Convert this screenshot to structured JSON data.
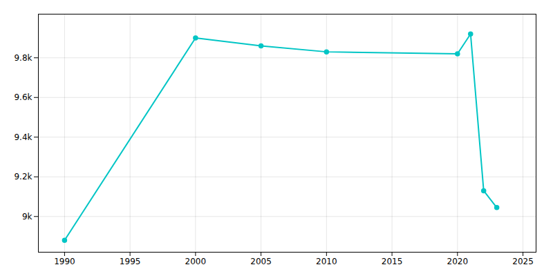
{
  "chart_data": {
    "type": "line",
    "x": [
      1990,
      2000,
      2005,
      2010,
      2020,
      2021,
      2022,
      2023
    ],
    "values": [
      8880,
      9900,
      9860,
      9830,
      9820,
      9920,
      9130,
      9045
    ],
    "color": "#00C5C5",
    "marker": "o",
    "xlim": [
      1988,
      2026
    ],
    "ylim": [
      8820,
      10020
    ],
    "xticks": [
      1990,
      1995,
      2000,
      2005,
      2010,
      2015,
      2020,
      2025
    ],
    "yticks": [
      {
        "value": 9000,
        "label": "9k"
      },
      {
        "value": 9200,
        "label": "9.2k"
      },
      {
        "value": 9400,
        "label": "9.4k"
      },
      {
        "value": 9600,
        "label": "9.6k"
      },
      {
        "value": 9800,
        "label": "9.8k"
      }
    ],
    "grid": true
  }
}
